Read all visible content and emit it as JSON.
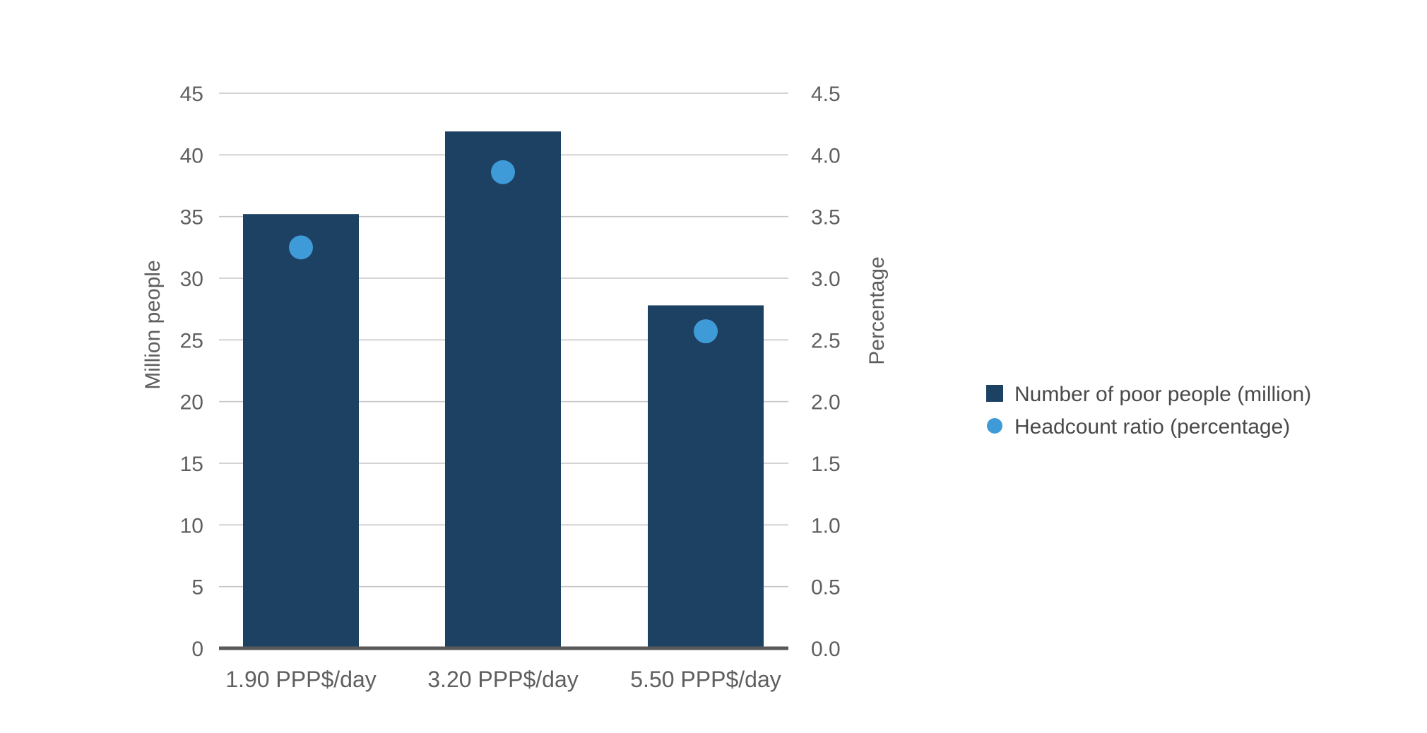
{
  "chart_data": {
    "type": "bar",
    "categories": [
      "1.90 PPP$/day",
      "3.20 PPP$/day",
      "5.50 PPP$/day"
    ],
    "series": [
      {
        "name": "Number of poor people (million)",
        "kind": "bar",
        "axis": "left",
        "values": [
          35.2,
          41.9,
          27.8
        ]
      },
      {
        "name": "Headcount ratio (percentage)",
        "kind": "point",
        "axis": "right",
        "values": [
          3.25,
          3.86,
          2.57
        ]
      }
    ],
    "ylabel": "Million people",
    "ylabel_right": "Percentage",
    "ylim": [
      0,
      45
    ],
    "ylim_right": [
      0,
      4.5
    ],
    "yticks": [
      "0",
      "5",
      "10",
      "15",
      "20",
      "25",
      "30",
      "35",
      "40",
      "45"
    ],
    "yticks_right": [
      "0.0",
      "0.5",
      "1.0",
      "1.5",
      "2.0",
      "2.5",
      "3.0",
      "3.5",
      "4.0",
      "4.5"
    ],
    "grid": true,
    "legend_position": "right",
    "colors": {
      "bar": "#1d4163",
      "point": "#3f9ad8",
      "grid": "#c6c6c6",
      "baseline": "#595959"
    }
  }
}
